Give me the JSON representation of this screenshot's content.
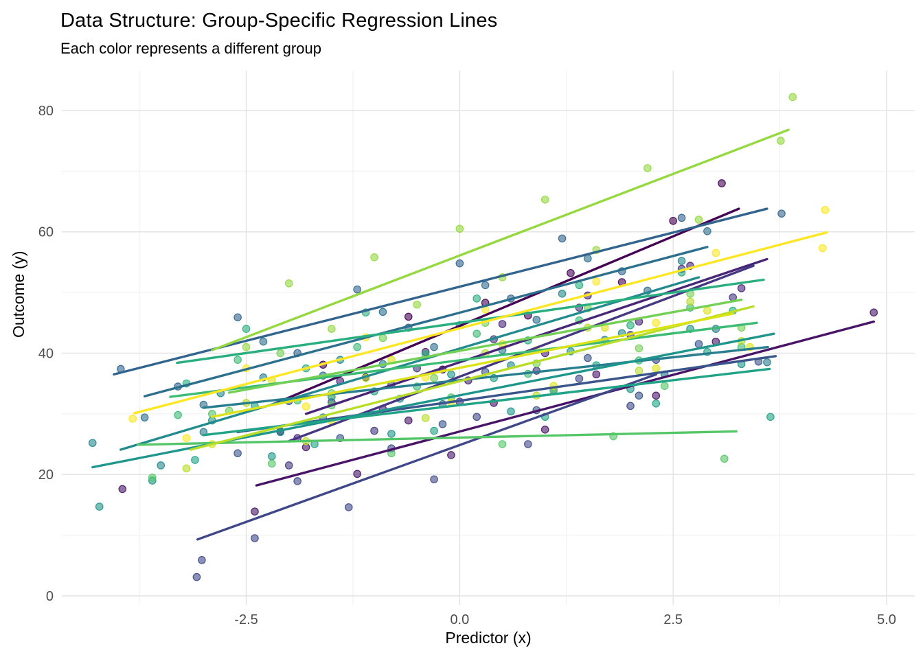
{
  "chart_data": {
    "type": "scatter",
    "title": "Data Structure: Group-Specific Regression Lines",
    "subtitle": "Each color represents a different group",
    "xlabel": "Predictor (x)",
    "ylabel": "Outcome (y)",
    "xlim": [
      -4.66,
      5.33
    ],
    "ylim": [
      -1.47,
      86.55
    ],
    "x_ticks": [
      -2.5,
      0.0,
      2.5,
      5.0
    ],
    "x_tick_labels": [
      "-2.5",
      "0.0",
      "2.5",
      "5.0"
    ],
    "y_ticks": [
      0,
      20,
      40,
      60,
      80
    ],
    "y_tick_labels": [
      "0",
      "20",
      "40",
      "60",
      "80"
    ],
    "x_minor_ticks": [
      -3.75,
      -1.25,
      1.25,
      3.75
    ],
    "y_minor_ticks": [
      10,
      30,
      50,
      70
    ],
    "grid": "on",
    "legend": "none",
    "palette_name": "viridis",
    "major_grid_color": "#e2e2e2",
    "minor_grid_color": "#efefef",
    "point_radius": 5.2,
    "point_alpha": 0.6,
    "line_width": 3.4,
    "groups": [
      {
        "color": "#440154",
        "line": [
          -2.2,
          31.5,
          3.27,
          63.8
        ],
        "points": [
          [
            -2.1,
            27.1
          ],
          [
            -1.6,
            38.1
          ],
          [
            -1.1,
            36.0
          ],
          [
            -0.6,
            46.0
          ],
          [
            -0.2,
            37.3
          ],
          [
            0.3,
            48.3
          ],
          [
            0.8,
            46.2
          ],
          [
            1.3,
            53.2
          ],
          [
            1.9,
            51.7
          ],
          [
            2.5,
            61.8
          ],
          [
            3.07,
            68.0
          ]
        ]
      },
      {
        "color": "#481467",
        "line": [
          -2.38,
          18.2,
          4.85,
          45.2
        ],
        "points": [
          [
            -3.95,
            17.6
          ],
          [
            -2.4,
            13.9
          ],
          [
            -1.8,
            24.5
          ],
          [
            -1.2,
            20.1
          ],
          [
            -0.6,
            28.9
          ],
          [
            -0.1,
            23.2
          ],
          [
            0.4,
            31.8
          ],
          [
            1.0,
            27.4
          ],
          [
            1.6,
            36.5
          ],
          [
            2.3,
            33.0
          ],
          [
            3.0,
            41.9
          ],
          [
            4.85,
            46.7
          ]
        ]
      },
      {
        "color": "#482576",
        "line": [
          -1.8,
          30.0,
          3.6,
          55.5
        ],
        "points": [
          [
            -1.9,
            26.0
          ],
          [
            -1.4,
            35.4
          ],
          [
            -0.9,
            30.8
          ],
          [
            -0.4,
            40.2
          ],
          [
            0.1,
            35.5
          ],
          [
            0.5,
            44.8
          ],
          [
            1.0,
            40.0
          ],
          [
            1.5,
            49.5
          ],
          [
            2.1,
            45.2
          ],
          [
            2.7,
            54.4
          ],
          [
            3.3,
            50.7
          ]
        ]
      },
      {
        "color": "#453781",
        "line": [
          -2.0,
          25.5,
          3.44,
          54.4
        ],
        "points": [
          [
            -2.0,
            21.5
          ],
          [
            -1.5,
            31.9
          ],
          [
            -1.0,
            27.2
          ],
          [
            -0.5,
            37.5
          ],
          [
            0.0,
            32.0
          ],
          [
            0.4,
            42.3
          ],
          [
            0.9,
            37.1
          ],
          [
            1.4,
            47.5
          ],
          [
            2.0,
            43.0
          ],
          [
            2.6,
            53.9
          ],
          [
            3.2,
            49.2
          ]
        ]
      },
      {
        "color": "#3f4788",
        "line": [
          -3.07,
          9.3,
          2.3,
          36.5
        ],
        "points": [
          [
            -3.08,
            3.1
          ],
          [
            -3.02,
            5.9
          ],
          [
            -2.4,
            9.5
          ],
          [
            -1.9,
            18.9
          ],
          [
            -1.3,
            14.6
          ],
          [
            -0.8,
            24.3
          ],
          [
            -0.3,
            19.2
          ],
          [
            0.2,
            29.5
          ],
          [
            0.8,
            25.0
          ],
          [
            1.4,
            35.8
          ],
          [
            2.0,
            31.3
          ],
          [
            2.3,
            38.9
          ]
        ]
      },
      {
        "color": "#39558c",
        "line": [
          -2.6,
          27.0,
          3.7,
          39.5
        ],
        "points": [
          [
            -2.6,
            23.5
          ],
          [
            -2.0,
            32.1
          ],
          [
            -1.4,
            26.0
          ],
          [
            -0.8,
            34.8
          ],
          [
            -0.2,
            28.3
          ],
          [
            0.3,
            36.9
          ],
          [
            0.9,
            30.6
          ],
          [
            1.5,
            39.2
          ],
          [
            2.1,
            33.0
          ],
          [
            2.8,
            41.5
          ],
          [
            3.5,
            38.6
          ]
        ]
      },
      {
        "color": "#32648e",
        "line": [
          -4.05,
          36.5,
          3.6,
          63.8
        ],
        "points": [
          [
            -3.97,
            37.4
          ],
          [
            -3.3,
            34.5
          ],
          [
            -2.6,
            45.9
          ],
          [
            -1.9,
            40.0
          ],
          [
            -1.2,
            50.5
          ],
          [
            -0.6,
            44.2
          ],
          [
            0.0,
            54.8
          ],
          [
            0.6,
            49.0
          ],
          [
            1.2,
            58.9
          ],
          [
            1.9,
            53.5
          ],
          [
            2.6,
            62.3
          ],
          [
            3.77,
            63.0
          ]
        ]
      },
      {
        "color": "#2d708e",
        "line": [
          -3.69,
          32.9,
          2.9,
          57.5
        ],
        "points": [
          [
            -3.69,
            29.4
          ],
          [
            -3.0,
            31.5
          ],
          [
            -2.3,
            41.9
          ],
          [
            -1.6,
            36.3
          ],
          [
            -0.9,
            46.8
          ],
          [
            -0.3,
            41.0
          ],
          [
            0.3,
            51.2
          ],
          [
            0.9,
            45.5
          ],
          [
            1.5,
            55.6
          ],
          [
            2.2,
            50.3
          ],
          [
            2.9,
            60.1
          ]
        ]
      },
      {
        "color": "#287d8e",
        "line": [
          -3.0,
          31.0,
          3.61,
          41.0
        ],
        "points": [
          [
            -3.0,
            27.0
          ],
          [
            -2.3,
            36.0
          ],
          [
            -1.6,
            29.4
          ],
          [
            -0.9,
            38.2
          ],
          [
            -0.2,
            31.6
          ],
          [
            0.5,
            40.5
          ],
          [
            1.1,
            33.9
          ],
          [
            1.7,
            42.2
          ],
          [
            2.4,
            36.5
          ],
          [
            3.0,
            44.0
          ],
          [
            3.6,
            38.5
          ]
        ]
      },
      {
        "color": "#238a8d",
        "line": [
          -3.97,
          24.1,
          2.8,
          52.5
        ],
        "points": [
          [
            -4.3,
            25.2
          ],
          [
            -3.5,
            21.5
          ],
          [
            -2.8,
            33.4
          ],
          [
            -2.1,
            27.0
          ],
          [
            -1.4,
            38.9
          ],
          [
            -0.7,
            32.5
          ],
          [
            0.0,
            44.6
          ],
          [
            0.6,
            38.0
          ],
          [
            1.2,
            49.8
          ],
          [
            1.9,
            43.3
          ],
          [
            2.6,
            55.2
          ]
        ]
      },
      {
        "color": "#1f968b",
        "line": [
          -4.3,
          21.2,
          3.68,
          43.2
        ],
        "points": [
          [
            -4.22,
            14.7
          ],
          [
            -3.6,
            19.0
          ],
          [
            -2.9,
            28.9
          ],
          [
            -2.2,
            23.0
          ],
          [
            -1.5,
            32.8
          ],
          [
            -0.8,
            26.7
          ],
          [
            -0.1,
            36.5
          ],
          [
            0.6,
            30.4
          ],
          [
            1.3,
            40.3
          ],
          [
            2.0,
            34.1
          ],
          [
            2.7,
            44.0
          ],
          [
            3.3,
            38.2
          ]
        ]
      },
      {
        "color": "#20a386",
        "line": [
          -3.0,
          26.5,
          3.63,
          37.4
        ],
        "points": [
          [
            -3.1,
            22.4
          ],
          [
            -2.4,
            31.3
          ],
          [
            -1.7,
            25.0
          ],
          [
            -1.0,
            33.7
          ],
          [
            -0.3,
            27.2
          ],
          [
            0.4,
            35.9
          ],
          [
            1.0,
            29.5
          ],
          [
            1.6,
            38.0
          ],
          [
            2.3,
            31.7
          ],
          [
            2.9,
            40.2
          ],
          [
            3.64,
            29.5
          ]
        ]
      },
      {
        "color": "#29af7f",
        "line": [
          -3.31,
          38.4,
          3.56,
          52.1
        ],
        "points": [
          [
            -3.2,
            35.0
          ],
          [
            -2.5,
            44.0
          ],
          [
            -1.8,
            37.5
          ],
          [
            -1.1,
            46.7
          ],
          [
            -0.4,
            39.8
          ],
          [
            0.2,
            49.0
          ],
          [
            0.8,
            42.1
          ],
          [
            1.4,
            51.2
          ],
          [
            2.0,
            44.6
          ],
          [
            2.6,
            53.3
          ],
          [
            3.2,
            47.0
          ]
        ]
      },
      {
        "color": "#3cbb75",
        "line": [
          -3.39,
          32.8,
          3.48,
          45.0
        ],
        "points": [
          [
            -3.3,
            29.8
          ],
          [
            -2.6,
            38.9
          ],
          [
            -1.9,
            32.2
          ],
          [
            -1.2,
            41.0
          ],
          [
            -0.5,
            34.5
          ],
          [
            0.2,
            43.2
          ],
          [
            0.8,
            36.6
          ],
          [
            1.4,
            45.4
          ],
          [
            2.1,
            38.8
          ],
          [
            2.7,
            47.5
          ],
          [
            3.3,
            41.0
          ]
        ]
      },
      {
        "color": "#55c667",
        "line": [
          -3.77,
          24.9,
          3.24,
          27.1
        ],
        "points": [
          [
            -3.6,
            19.5
          ],
          [
            -2.9,
            30.0
          ],
          [
            -2.2,
            21.8
          ],
          [
            -1.5,
            31.4
          ],
          [
            -0.8,
            23.5
          ],
          [
            -0.1,
            32.7
          ],
          [
            0.5,
            25.0
          ],
          [
            1.1,
            33.8
          ],
          [
            1.8,
            26.3
          ],
          [
            2.4,
            34.6
          ],
          [
            3.1,
            22.6
          ]
        ]
      },
      {
        "color": "#73d055",
        "line": [
          -2.7,
          33.5,
          3.3,
          48.8
        ],
        "points": [
          [
            -2.7,
            30.5
          ],
          [
            -2.1,
            40.0
          ],
          [
            -1.5,
            33.4
          ],
          [
            -0.9,
            42.5
          ],
          [
            -0.3,
            35.9
          ],
          [
            0.3,
            45.0
          ],
          [
            0.9,
            38.3
          ],
          [
            1.5,
            47.4
          ],
          [
            2.1,
            40.8
          ],
          [
            2.7,
            49.8
          ],
          [
            3.3,
            44.2
          ]
        ]
      },
      {
        "color": "#95d840",
        "line": [
          -2.9,
          40.5,
          3.85,
          76.8
        ],
        "points": [
          [
            -2.5,
            41.0
          ],
          [
            -2.0,
            51.5
          ],
          [
            -1.5,
            44.0
          ],
          [
            -1.0,
            55.8
          ],
          [
            -0.5,
            48.0
          ],
          [
            0.0,
            60.5
          ],
          [
            0.5,
            52.5
          ],
          [
            1.0,
            65.3
          ],
          [
            1.6,
            57.0
          ],
          [
            2.2,
            70.5
          ],
          [
            2.8,
            62.0
          ],
          [
            3.76,
            75.0
          ],
          [
            3.9,
            82.2
          ]
        ]
      },
      {
        "color": "#b8de29",
        "line": [
          -3.15,
          24.1,
          3.44,
          47.7
        ],
        "points": [
          [
            -3.2,
            21.0
          ],
          [
            -2.5,
            31.8
          ],
          [
            -1.8,
            25.5
          ],
          [
            -1.1,
            35.9
          ],
          [
            -0.4,
            29.3
          ],
          [
            0.3,
            40.0
          ],
          [
            0.9,
            33.0
          ],
          [
            1.5,
            44.2
          ],
          [
            2.1,
            37.1
          ],
          [
            2.7,
            48.5
          ],
          [
            3.3,
            42.0
          ]
        ]
      },
      {
        "color": "#dce319",
        "line": [
          -2.9,
          29.5,
          3.2,
          46.5
        ],
        "points": [
          [
            -2.9,
            25.0
          ],
          [
            -2.2,
            35.5
          ],
          [
            -1.5,
            28.8
          ],
          [
            -0.8,
            38.9
          ],
          [
            -0.1,
            31.9
          ],
          [
            0.5,
            41.5
          ],
          [
            1.1,
            34.6
          ],
          [
            1.7,
            44.2
          ],
          [
            2.3,
            37.5
          ],
          [
            2.9,
            47.0
          ],
          [
            3.4,
            41.0
          ]
        ]
      },
      {
        "color": "#fde725",
        "line": [
          -3.81,
          30.1,
          4.3,
          59.9
        ],
        "points": [
          [
            -3.83,
            29.2
          ],
          [
            -3.2,
            26.0
          ],
          [
            -2.5,
            37.5
          ],
          [
            -1.8,
            31.2
          ],
          [
            -1.1,
            42.6
          ],
          [
            -0.4,
            36.0
          ],
          [
            0.3,
            47.2
          ],
          [
            0.9,
            40.5
          ],
          [
            1.6,
            51.8
          ],
          [
            2.3,
            45.0
          ],
          [
            3.0,
            56.5
          ],
          [
            4.25,
            57.3
          ],
          [
            4.28,
            63.6
          ]
        ]
      }
    ]
  }
}
